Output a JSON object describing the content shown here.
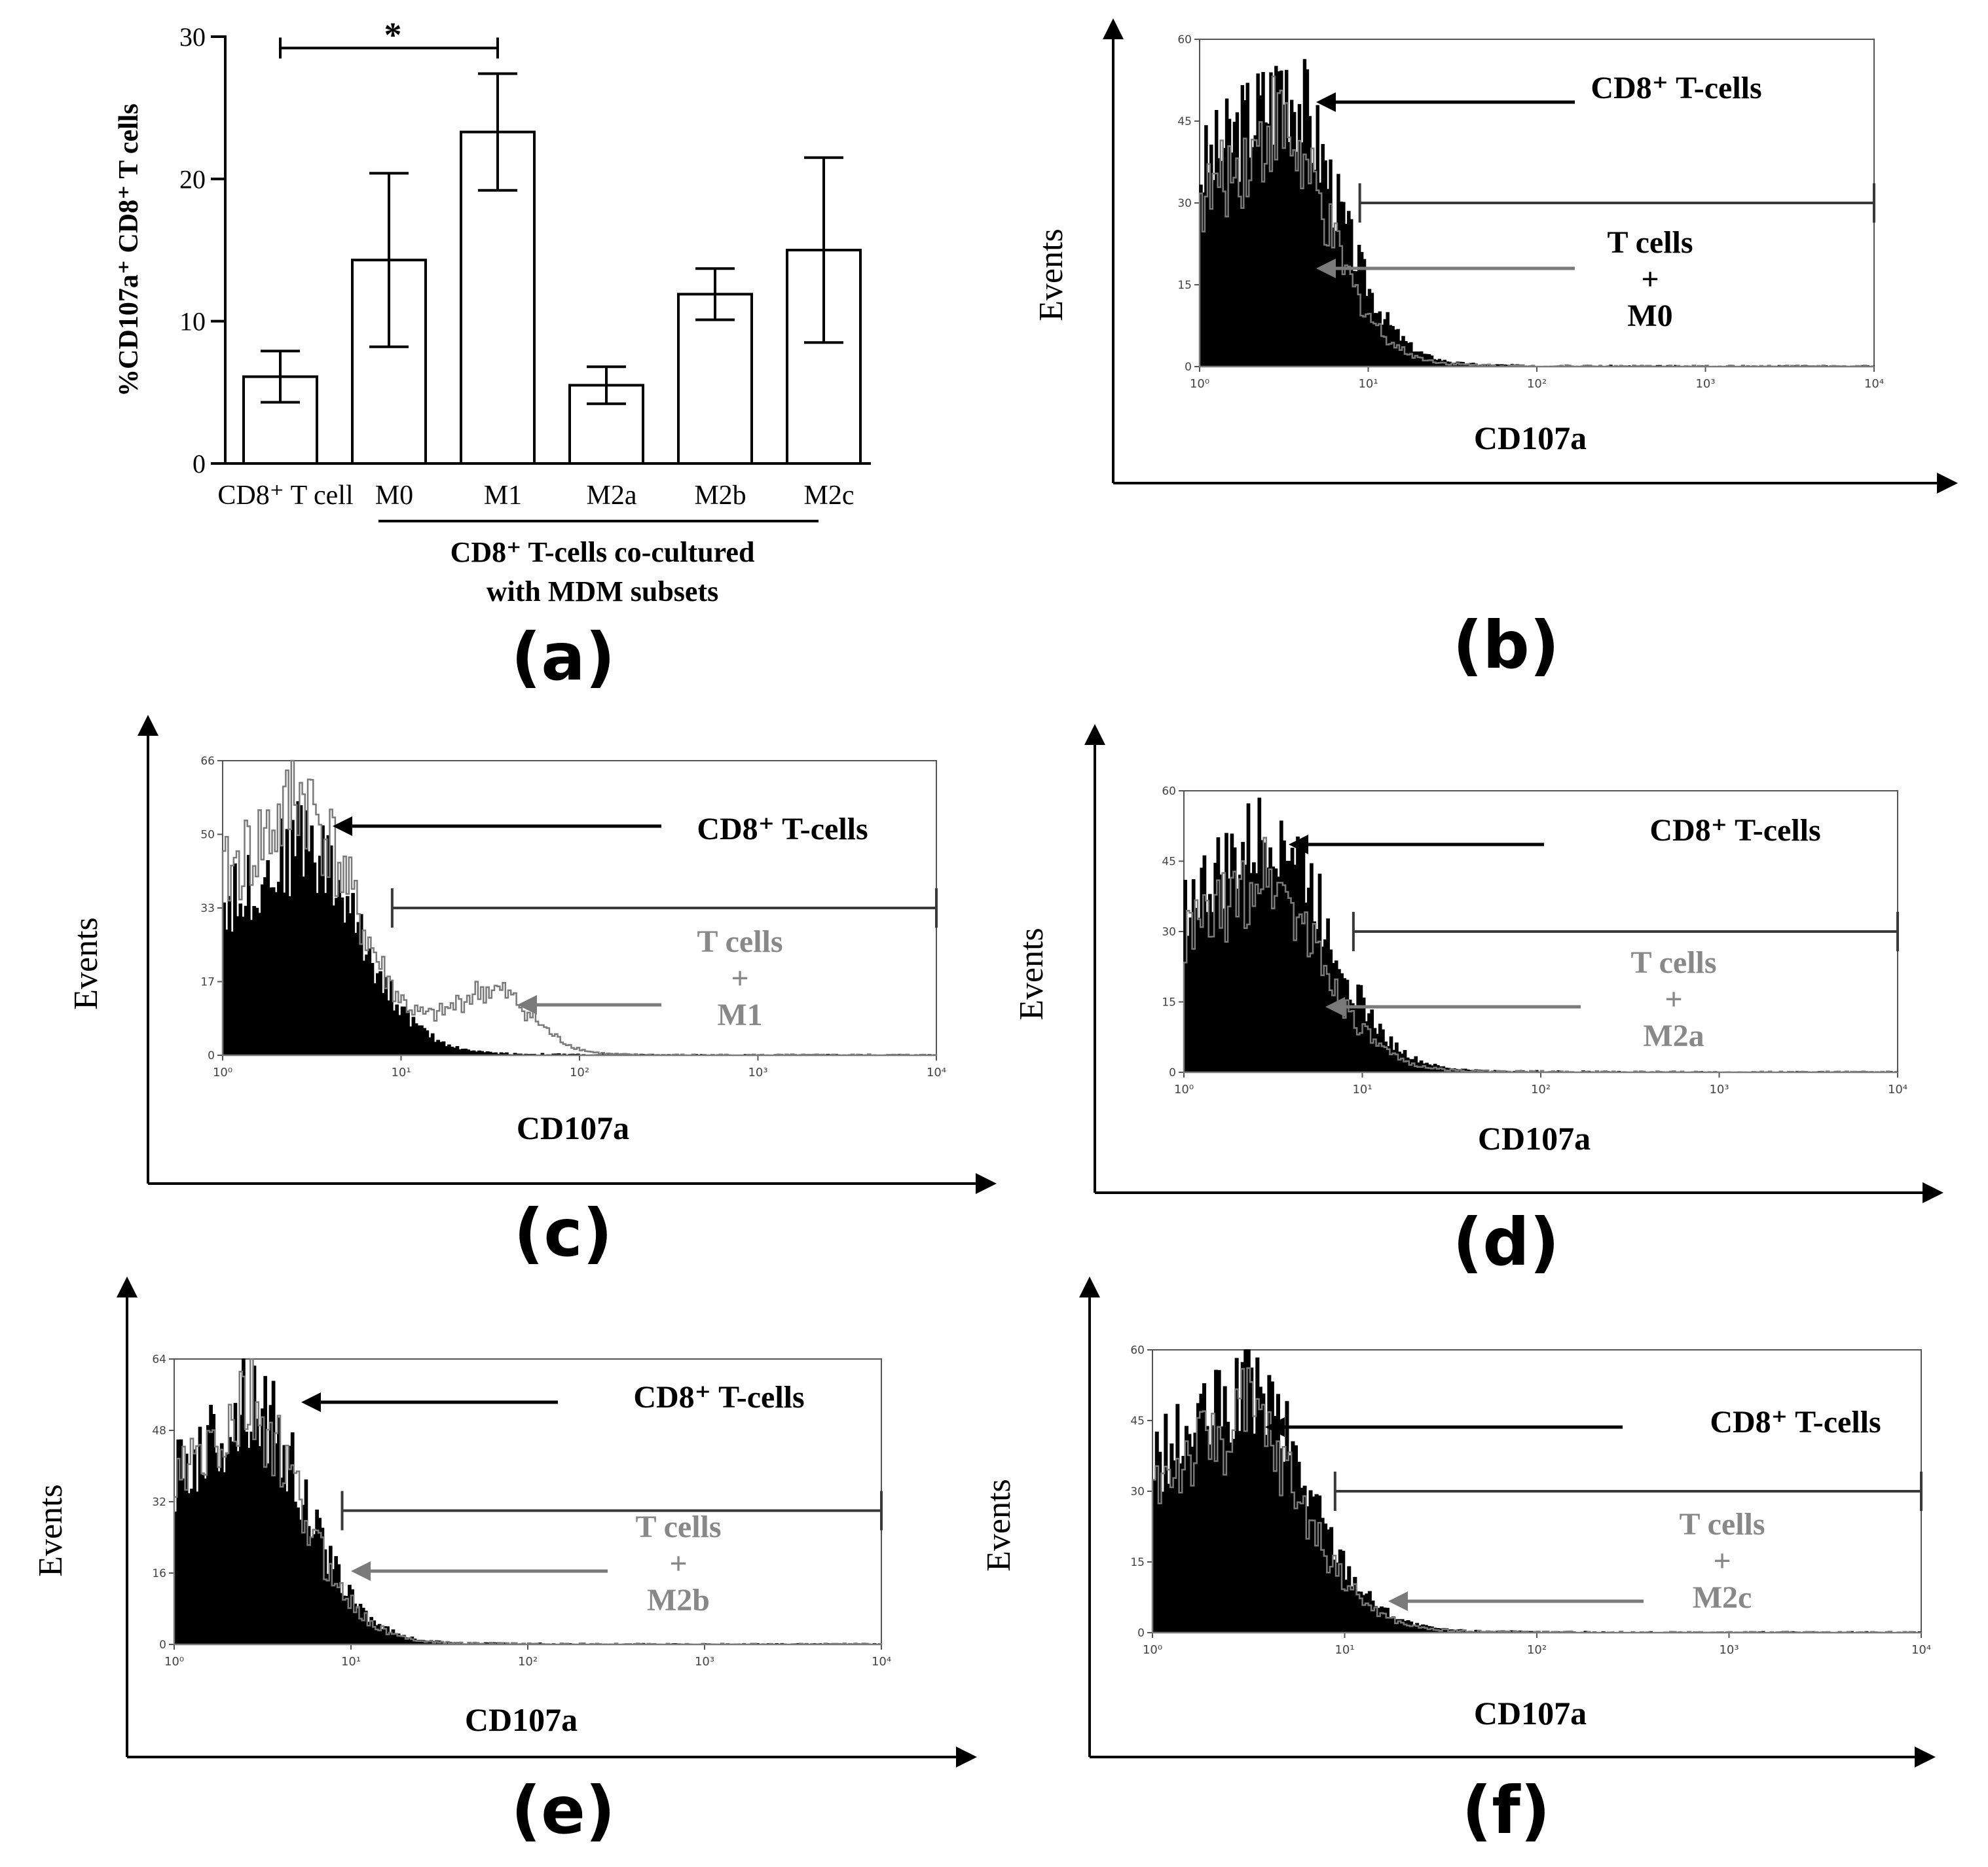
{
  "colors": {
    "ink": "#000000",
    "gray": "#7a7a7a",
    "gray_text": "#888888",
    "frame": "#555555",
    "background": "#ffffff"
  },
  "chart_data": [
    {
      "id": "a",
      "type": "bar",
      "panel_label": "(a)",
      "ylabel": "%CD107a⁺ CD8⁺ T cells",
      "ylim": [
        0,
        30
      ],
      "yticks": [
        "0",
        "10",
        "20",
        "30"
      ],
      "ytick_values": [
        0,
        10,
        20,
        30
      ],
      "categories": [
        "CD8⁺ T cell",
        "M0",
        "M1",
        "M2a",
        "M2b",
        "M2c"
      ],
      "values": [
        6.1,
        14.3,
        23.3,
        5.5,
        11.9,
        15.0
      ],
      "error": [
        1.8,
        6.1,
        4.1,
        1.3,
        1.8,
        6.5
      ],
      "group_label_line1": "CD8⁺ T-cells co-cultured",
      "group_label_line2": "with MDM subsets",
      "significance": {
        "from": "CD8⁺ T cell",
        "to": "M1",
        "y": 29.2,
        "label": "*"
      }
    },
    {
      "id": "b",
      "type": "histogram",
      "panel_label": "(b)",
      "xlabel": "CD107a",
      "ylabel": "Events",
      "ymax": 60,
      "yticks": [
        "0",
        "15",
        "30",
        "45",
        "60"
      ],
      "xticks": [
        "10⁰",
        "10¹",
        "10²",
        "10³",
        "10⁴"
      ],
      "legend_black": "CD8⁺ T-cells",
      "legend_gray": [
        "T cells",
        "+",
        "M0"
      ],
      "series": [
        {
          "name": "CD8⁺ T-cells",
          "color": "black",
          "peak_log": 0.45,
          "peak": 50
        },
        {
          "name": "T cells + M0",
          "color": "gray",
          "peak_log": 0.4,
          "peak": 42
        }
      ],
      "gate_log": [
        0.95,
        4.0
      ],
      "gate_y": 30
    },
    {
      "id": "c",
      "type": "histogram",
      "panel_label": "(c)",
      "xlabel": "CD107a",
      "ylabel": "Events",
      "ymax": 66,
      "yticks": [
        "0",
        "17",
        "33",
        "50",
        "66"
      ],
      "xticks": [
        "10⁰",
        "10¹",
        "10²",
        "10³",
        "10⁴"
      ],
      "legend_black": "CD8⁺ T-cells",
      "legend_gray": [
        "T cells",
        "+",
        "M1"
      ],
      "series": [
        {
          "name": "CD8⁺ T-cells",
          "color": "black",
          "peak_log": 0.4,
          "peak": 46
        },
        {
          "name": "T cells + M1",
          "color": "gray",
          "peak_log": 0.38,
          "peak": 55,
          "second_peak_log": 1.5,
          "second_peak": 14
        }
      ],
      "gate_log": [
        0.95,
        4.0
      ],
      "gate_y": 33
    },
    {
      "id": "d",
      "type": "histogram",
      "panel_label": "(d)",
      "xlabel": "CD107a",
      "ylabel": "Events",
      "ymax": 60,
      "yticks": [
        "0",
        "15",
        "30",
        "45",
        "60"
      ],
      "xticks": [
        "10⁰",
        "10¹",
        "10²",
        "10³",
        "10⁴"
      ],
      "legend_black": "CD8⁺ T-cells",
      "legend_gray": [
        "T cells",
        "+",
        "M2a"
      ],
      "series": [
        {
          "name": "CD8⁺ T-cells",
          "color": "black",
          "peak_log": 0.45,
          "peak": 50
        },
        {
          "name": "T cells + M2a",
          "color": "gray",
          "peak_log": 0.4,
          "peak": 40
        }
      ],
      "gate_log": [
        0.95,
        4.0
      ],
      "gate_y": 30
    },
    {
      "id": "e",
      "type": "histogram",
      "panel_label": "(e)",
      "xlabel": "CD107a",
      "ylabel": "Events",
      "ymax": 64,
      "yticks": [
        "0",
        "16",
        "32",
        "48",
        "64"
      ],
      "xticks": [
        "10⁰",
        "10¹",
        "10²",
        "10³",
        "10⁴"
      ],
      "legend_black": "CD8⁺ T-cells",
      "legend_gray": [
        "T cells",
        "+",
        "M2b"
      ],
      "series": [
        {
          "name": "CD8⁺ T-cells",
          "color": "black",
          "peak_log": 0.38,
          "peak": 52
        },
        {
          "name": "T cells + M2b",
          "color": "gray",
          "peak_log": 0.36,
          "peak": 50
        }
      ],
      "gate_log": [
        0.95,
        4.0
      ],
      "gate_y": 30
    },
    {
      "id": "f",
      "type": "histogram",
      "panel_label": "(f)",
      "xlabel": "CD107a",
      "ylabel": "Events",
      "ymax": 60,
      "yticks": [
        "0",
        "15",
        "30",
        "45",
        "60"
      ],
      "xticks": [
        "10⁰",
        "10¹",
        "10²",
        "10³",
        "10⁴"
      ],
      "legend_black": "CD8⁺ T-cells",
      "legend_gray": [
        "T cells",
        "+",
        "M2c"
      ],
      "series": [
        {
          "name": "CD8⁺ T-cells",
          "color": "black",
          "peak_log": 0.45,
          "peak": 50
        },
        {
          "name": "T cells + M2c",
          "color": "gray",
          "peak_log": 0.42,
          "peak": 44
        }
      ],
      "gate_log": [
        0.95,
        4.0
      ],
      "gate_y": 30
    }
  ]
}
